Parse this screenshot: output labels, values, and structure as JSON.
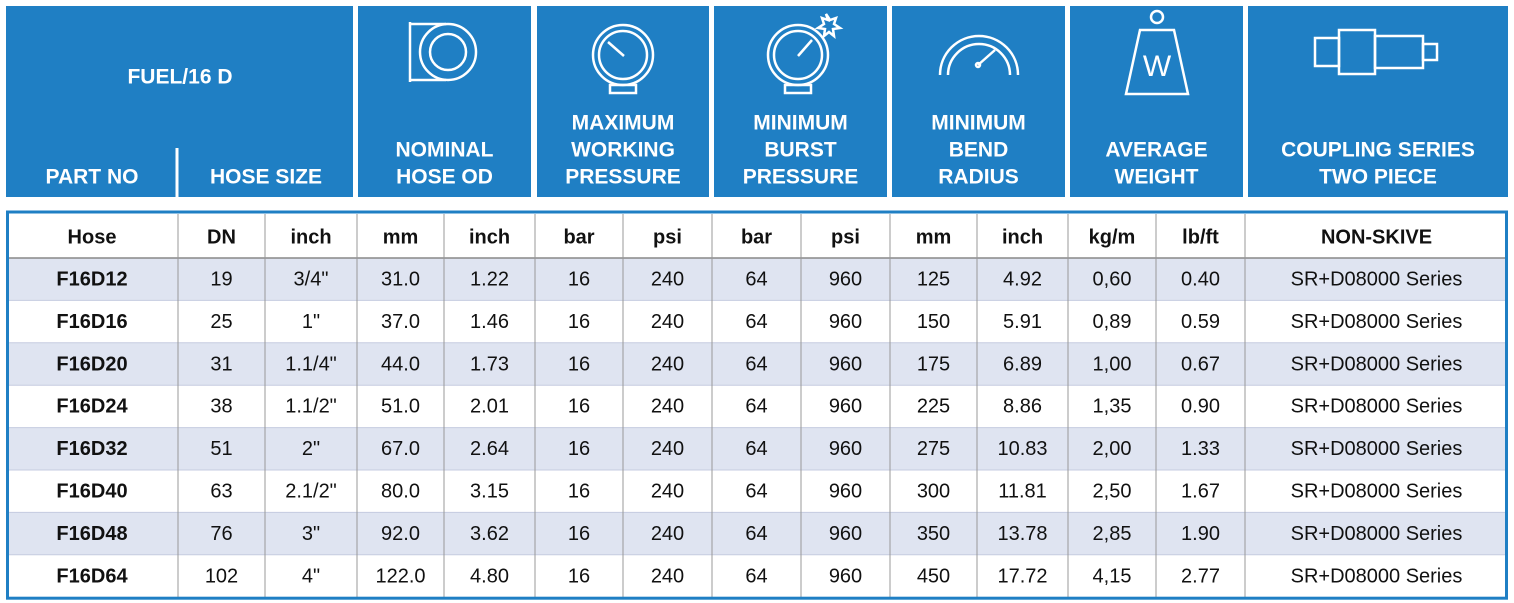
{
  "header": {
    "title": "FUEL/16 D",
    "part_no": "PART NO",
    "hose_size": "HOSE SIZE",
    "groups": [
      [
        "NOMINAL",
        "HOSE OD"
      ],
      [
        "MAXIMUM",
        "WORKING",
        "PRESSURE"
      ],
      [
        "MINIMUM",
        "BURST",
        "PRESSURE"
      ],
      [
        "MINIMUM",
        "BEND",
        "RADIUS"
      ],
      [
        "AVERAGE",
        "WEIGHT"
      ],
      [
        "COUPLING SERIES",
        "TWO PIECE"
      ]
    ]
  },
  "table": {
    "units": [
      "Hose",
      "DN",
      "inch",
      "mm",
      "inch",
      "bar",
      "psi",
      "bar",
      "psi",
      "mm",
      "inch",
      "kg/m",
      "lb/ft",
      "NON-SKIVE"
    ],
    "rows": [
      [
        "F16D12",
        "19",
        "3/4\"",
        "31.0",
        "1.22",
        "16",
        "240",
        "64",
        "960",
        "125",
        "4.92",
        "0,60",
        "0.40",
        "SR+D08000 Series"
      ],
      [
        "F16D16",
        "25",
        "1\"",
        "37.0",
        "1.46",
        "16",
        "240",
        "64",
        "960",
        "150",
        "5.91",
        "0,89",
        "0.59",
        "SR+D08000 Series"
      ],
      [
        "F16D20",
        "31",
        "1.1/4\"",
        "44.0",
        "1.73",
        "16",
        "240",
        "64",
        "960",
        "175",
        "6.89",
        "1,00",
        "0.67",
        "SR+D08000 Series"
      ],
      [
        "F16D24",
        "38",
        "1.1/2\"",
        "51.0",
        "2.01",
        "16",
        "240",
        "64",
        "960",
        "225",
        "8.86",
        "1,35",
        "0.90",
        "SR+D08000 Series"
      ],
      [
        "F16D32",
        "51",
        "2\"",
        "67.0",
        "2.64",
        "16",
        "240",
        "64",
        "960",
        "275",
        "10.83",
        "2,00",
        "1.33",
        "SR+D08000 Series"
      ],
      [
        "F16D40",
        "63",
        "2.1/2\"",
        "80.0",
        "3.15",
        "16",
        "240",
        "64",
        "960",
        "300",
        "11.81",
        "2,50",
        "1.67",
        "SR+D08000 Series"
      ],
      [
        "F16D48",
        "76",
        "3\"",
        "92.0",
        "3.62",
        "16",
        "240",
        "64",
        "960",
        "350",
        "13.78",
        "2,85",
        "1.90",
        "SR+D08000 Series"
      ],
      [
        "F16D64",
        "102",
        "4\"",
        "122.0",
        "4.80",
        "16",
        "240",
        "64",
        "960",
        "450",
        "17.72",
        "4,15",
        "2.77",
        "SR+D08000 Series"
      ]
    ]
  }
}
